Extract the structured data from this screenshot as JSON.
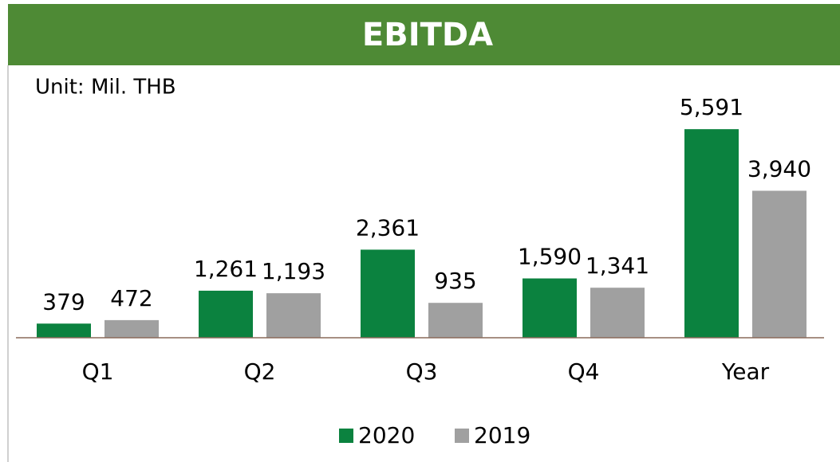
{
  "chart_data": {
    "type": "bar",
    "title": "EBITDA",
    "subtitle": "Unit: Mil. THB",
    "categories": [
      "Q1",
      "Q2",
      "Q3",
      "Q4",
      "Year"
    ],
    "series": [
      {
        "name": "2020",
        "color": "#0b823f",
        "values": [
          379,
          1261,
          2361,
          1590,
          5591
        ],
        "value_labels": [
          "379",
          "1,261",
          "2,361",
          "1,590",
          "5,591"
        ]
      },
      {
        "name": "2019",
        "color": "#a0a0a0",
        "values": [
          472,
          1193,
          935,
          1341,
          3940
        ],
        "value_labels": [
          "472",
          "1,193",
          "935",
          "1,341",
          "3,940"
        ]
      }
    ],
    "ylim": [
      0,
      6000
    ],
    "legend": "bottom"
  }
}
